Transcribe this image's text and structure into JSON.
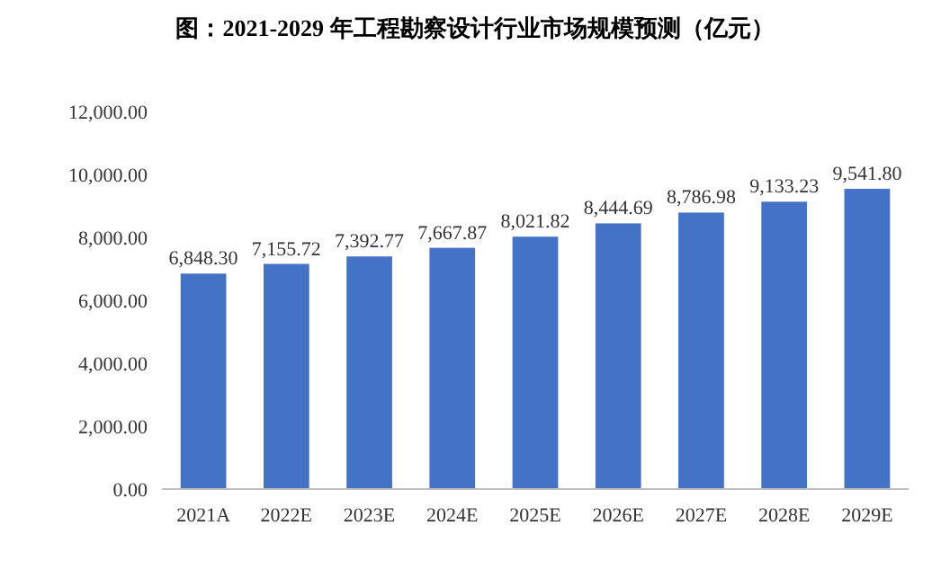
{
  "chart_data": {
    "type": "bar",
    "title": "图：2021-2029 年工程勘察设计行业市场规模预测（亿元）",
    "categories": [
      "2021A",
      "2022E",
      "2023E",
      "2024E",
      "2025E",
      "2026E",
      "2027E",
      "2028E",
      "2029E"
    ],
    "values": [
      6848.3,
      7155.72,
      7392.77,
      7667.87,
      8021.82,
      8444.69,
      8786.98,
      9133.23,
      9541.8
    ],
    "value_labels": [
      "6,848.30",
      "7,155.72",
      "7,392.77",
      "7,667.87",
      "8,021.82",
      "8,444.69",
      "8,786.98",
      "9,133.23",
      "9,541.80"
    ],
    "color": "#4472c4",
    "ylim": [
      0,
      12000
    ],
    "yticks": [
      {
        "value": 0,
        "label": "0.00"
      },
      {
        "value": 2000,
        "label": "2,000.00"
      },
      {
        "value": 4000,
        "label": "4,000.00"
      },
      {
        "value": 6000,
        "label": "6,000.00"
      },
      {
        "value": 8000,
        "label": "8,000.00"
      },
      {
        "value": 10000,
        "label": "10,000.00"
      },
      {
        "value": 12000,
        "label": "12,000.00"
      }
    ]
  }
}
